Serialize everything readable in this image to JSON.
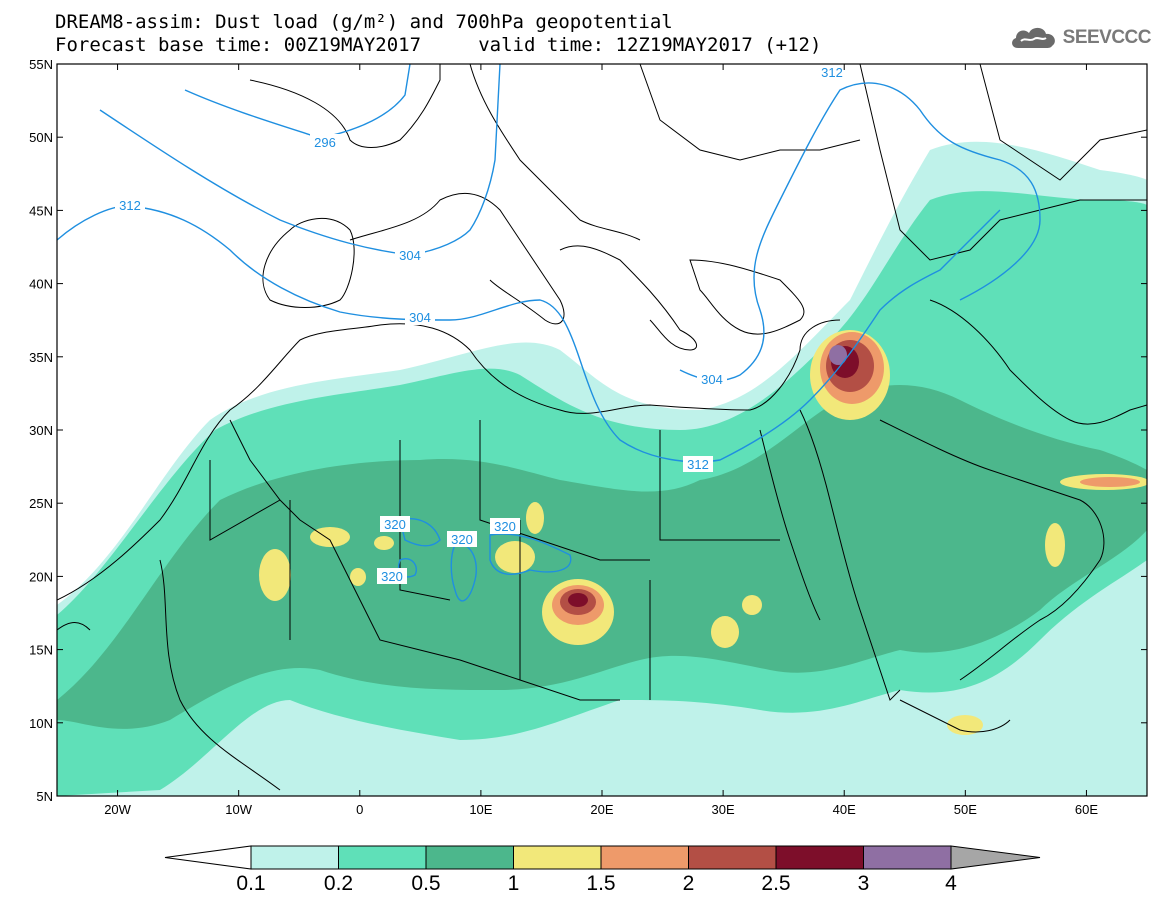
{
  "header": {
    "title_line1": "DREAM8-assim: Dust load (g/m²) and 700hPa geopotential",
    "title_line2": "Forecast base time: 00Z19MAY2017     valid time: 12Z19MAY2017 (+12)",
    "logo_text": "SEEVCCC",
    "logo_icon": "cloud-icon"
  },
  "map": {
    "lon_range": [
      -25,
      65
    ],
    "lat_range": [
      5,
      55
    ],
    "lat_ticks": [
      "55N",
      "50N",
      "45N",
      "40N",
      "35N",
      "30N",
      "25N",
      "20N",
      "15N",
      "10N",
      "5N"
    ],
    "lon_ticks": [
      "20W",
      "10W",
      "0",
      "10E",
      "20E",
      "30E",
      "40E",
      "50E",
      "60E"
    ],
    "contour_labels": [
      "296",
      "304",
      "312",
      "304",
      "312",
      "304",
      "312",
      "320",
      "320",
      "320",
      "320"
    ],
    "contour_color": "#1f8fe0"
  },
  "colorbar": {
    "labels": [
      "0.1",
      "0.2",
      "0.5",
      "1",
      "1.5",
      "2",
      "2.5",
      "3",
      "4"
    ],
    "colors": [
      "#bff2ea",
      "#5fe0b8",
      "#4cb78c",
      "#f2e87a",
      "#ee9a6a",
      "#b34f45",
      "#7d0e2a",
      "#8f6fa3",
      "#a6a6a6"
    ]
  }
}
